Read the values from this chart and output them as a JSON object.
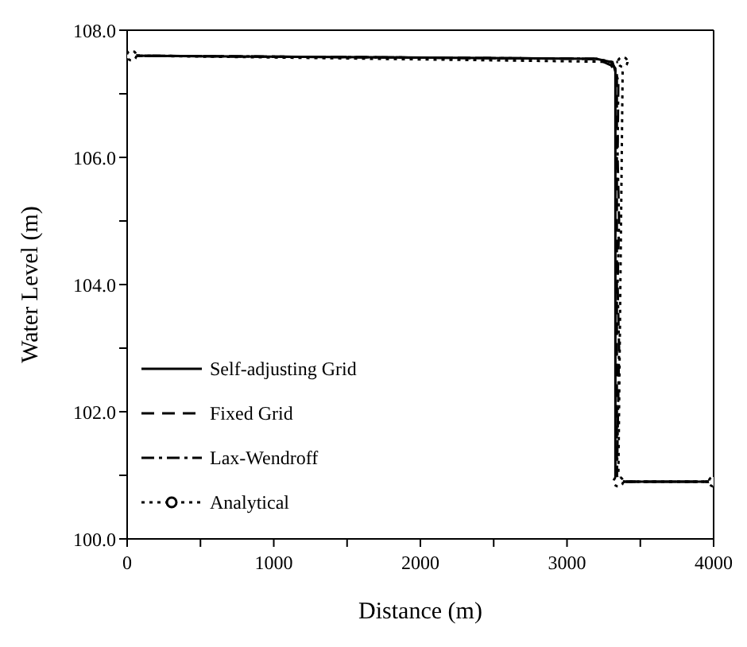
{
  "chart_data": {
    "type": "line",
    "xlabel": "Distance (m)",
    "ylabel": "Water Level (m)",
    "xlim": [
      0,
      4000
    ],
    "ylim": [
      100,
      108
    ],
    "xticks": [
      0,
      {
        "value": 500,
        "label": null
      },
      1000,
      {
        "value": 1500,
        "label": null
      },
      2000,
      {
        "value": 2500,
        "label": null
      },
      3000,
      {
        "value": 3500,
        "label": null
      },
      4000
    ],
    "yticks": [
      {
        "value": 100,
        "label": "100.0"
      },
      {
        "value": 101,
        "label": null
      },
      {
        "value": 102,
        "label": "102.0"
      },
      {
        "value": 103,
        "label": null
      },
      {
        "value": 104,
        "label": "104.0"
      },
      {
        "value": 105,
        "label": null
      },
      {
        "value": 106,
        "label": "106.0"
      },
      {
        "value": 107,
        "label": null
      },
      {
        "value": 108,
        "label": "108.0"
      }
    ],
    "grid": false,
    "legend": "bottom left",
    "series": [
      {
        "name": "Self-adjusting Grid",
        "color": "#000000",
        "line_style": "solid",
        "marker": "none",
        "x": [
          0,
          3200,
          3300,
          3330,
          3330,
          4000
        ],
        "values": [
          107.6,
          107.55,
          107.5,
          107.4,
          100.9,
          100.9
        ]
      },
      {
        "name": "Fixed Grid",
        "color": "#000000",
        "line_style": "dashed",
        "marker": "none",
        "x": [
          0,
          3200,
          3300,
          3340,
          3340,
          4000
        ],
        "values": [
          107.6,
          107.55,
          107.45,
          107.3,
          100.9,
          100.9
        ]
      },
      {
        "name": "Lax-Wendroff",
        "color": "#000000",
        "line_style": "dashdot",
        "marker": "none",
        "x": [
          0,
          3200,
          3310,
          3350,
          3345,
          3355,
          3345,
          3355,
          3340,
          4000
        ],
        "values": [
          107.6,
          107.55,
          107.5,
          107.2,
          106,
          105,
          104,
          103,
          100.9,
          100.9
        ]
      },
      {
        "name": "Analytical",
        "color": "#000000",
        "line_style": "dotted",
        "marker": "circle",
        "x": [
          30,
          3380,
          3350,
          4000
        ],
        "values": [
          107.6,
          107.5,
          100.9,
          100.9
        ]
      }
    ]
  }
}
